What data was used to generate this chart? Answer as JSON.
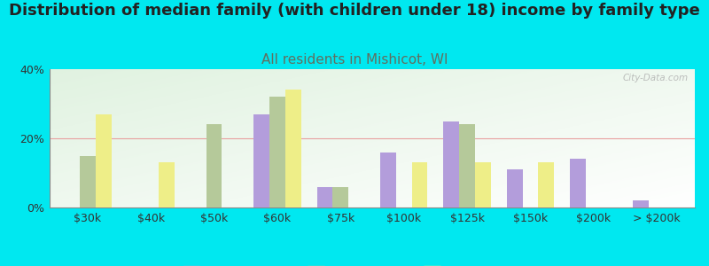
{
  "title": "Distribution of median family (with children under 18) income by family type",
  "subtitle": "All residents in Mishicot, WI",
  "categories": [
    "$30k",
    "$40k",
    "$50k",
    "$60k",
    "$75k",
    "$100k",
    "$125k",
    "$150k",
    "$200k",
    "> $200k"
  ],
  "married_couple": [
    0,
    0,
    0,
    27,
    6,
    16,
    25,
    11,
    14,
    2
  ],
  "male_no_wife": [
    15,
    0,
    24,
    32,
    6,
    0,
    24,
    0,
    0,
    0
  ],
  "female_no_husband": [
    27,
    13,
    0,
    34,
    0,
    13,
    13,
    13,
    0,
    0
  ],
  "married_couple_color": "#b39ddb",
  "male_no_wife_color": "#b5c99a",
  "female_no_husband_color": "#eeee88",
  "bg_color": "#00e8f0",
  "watermark": "City-Data.com",
  "ylim": [
    0,
    40
  ],
  "yticks": [
    0,
    20,
    40
  ],
  "bar_width": 0.25,
  "title_fontsize": 13,
  "subtitle_fontsize": 11,
  "subtitle_color": "#607060",
  "axis_label_fontsize": 9,
  "legend_fontsize": 9,
  "grid_color": "#e8a0a0",
  "grid_linewidth": 0.8
}
